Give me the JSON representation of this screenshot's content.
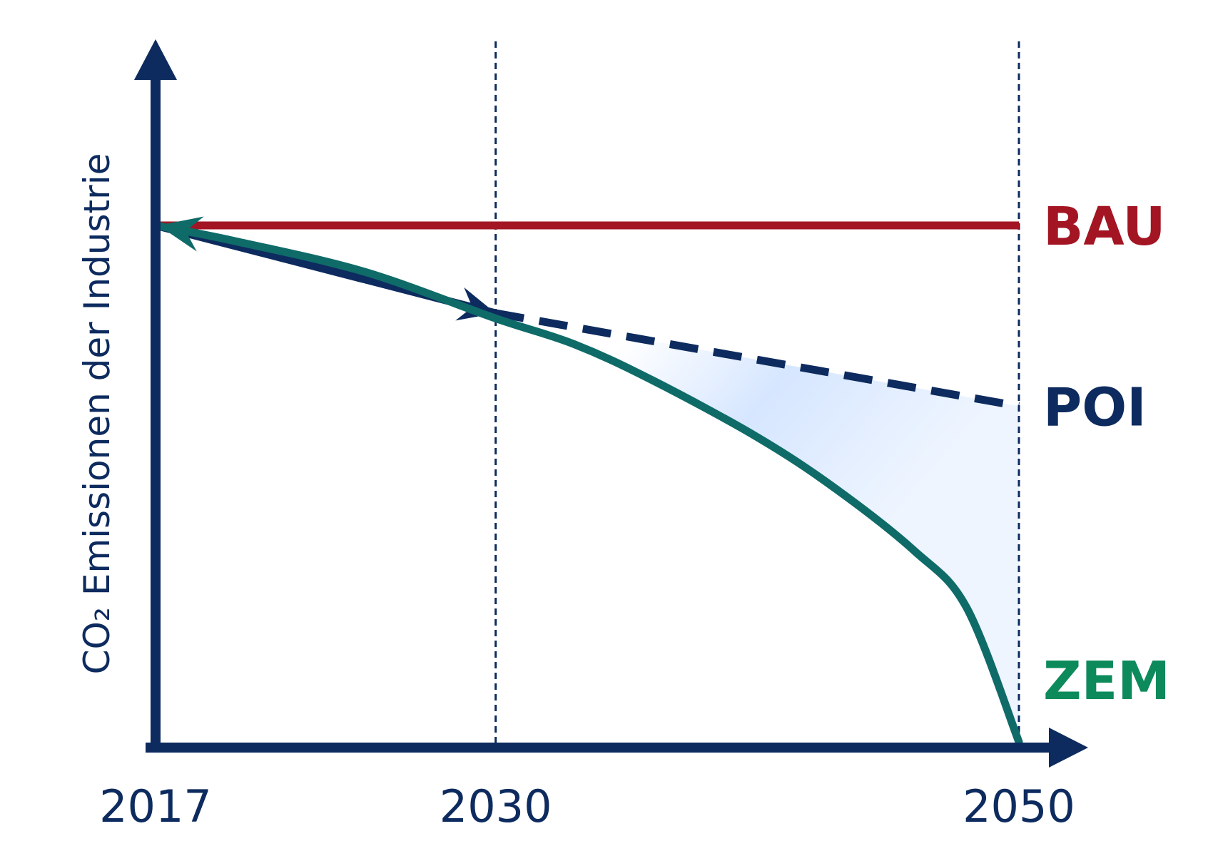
{
  "chart_data": {
    "type": "line",
    "ylabel": "CO₂ Emissionen der Industrie",
    "xlabel": "",
    "title": "",
    "x_ticks": [
      "2017",
      "2030",
      "2050"
    ],
    "x_range": [
      2017,
      2050
    ],
    "y_range": [
      0,
      100
    ],
    "reference_lines": [
      2030,
      2050
    ],
    "grid": false,
    "series": [
      {
        "name": "BAU",
        "color": "#a31523",
        "style": "solid",
        "points": [
          [
            2017,
            100
          ],
          [
            2050,
            100
          ]
        ]
      },
      {
        "name": "POI",
        "color": "#0d2b5e",
        "style": "solid-then-dashed",
        "dash_from": 2030,
        "points": [
          [
            2017,
            100
          ],
          [
            2030,
            83
          ],
          [
            2050,
            65
          ]
        ]
      },
      {
        "name": "ZEM",
        "color": "#0f6b68",
        "label_color": "#0c8a5c",
        "style": "solid",
        "points": [
          [
            2017,
            100
          ],
          [
            2020,
            97
          ],
          [
            2025,
            91
          ],
          [
            2030,
            82
          ],
          [
            2033,
            77
          ],
          [
            2036,
            70
          ],
          [
            2040,
            59
          ],
          [
            2043,
            49
          ],
          [
            2046,
            37
          ],
          [
            2048,
            26
          ],
          [
            2050,
            0
          ]
        ]
      }
    ],
    "shaded_area": {
      "between": [
        "POI",
        "ZEM"
      ],
      "from": 2030,
      "to": 2050,
      "color": "#cfe2ff"
    }
  }
}
